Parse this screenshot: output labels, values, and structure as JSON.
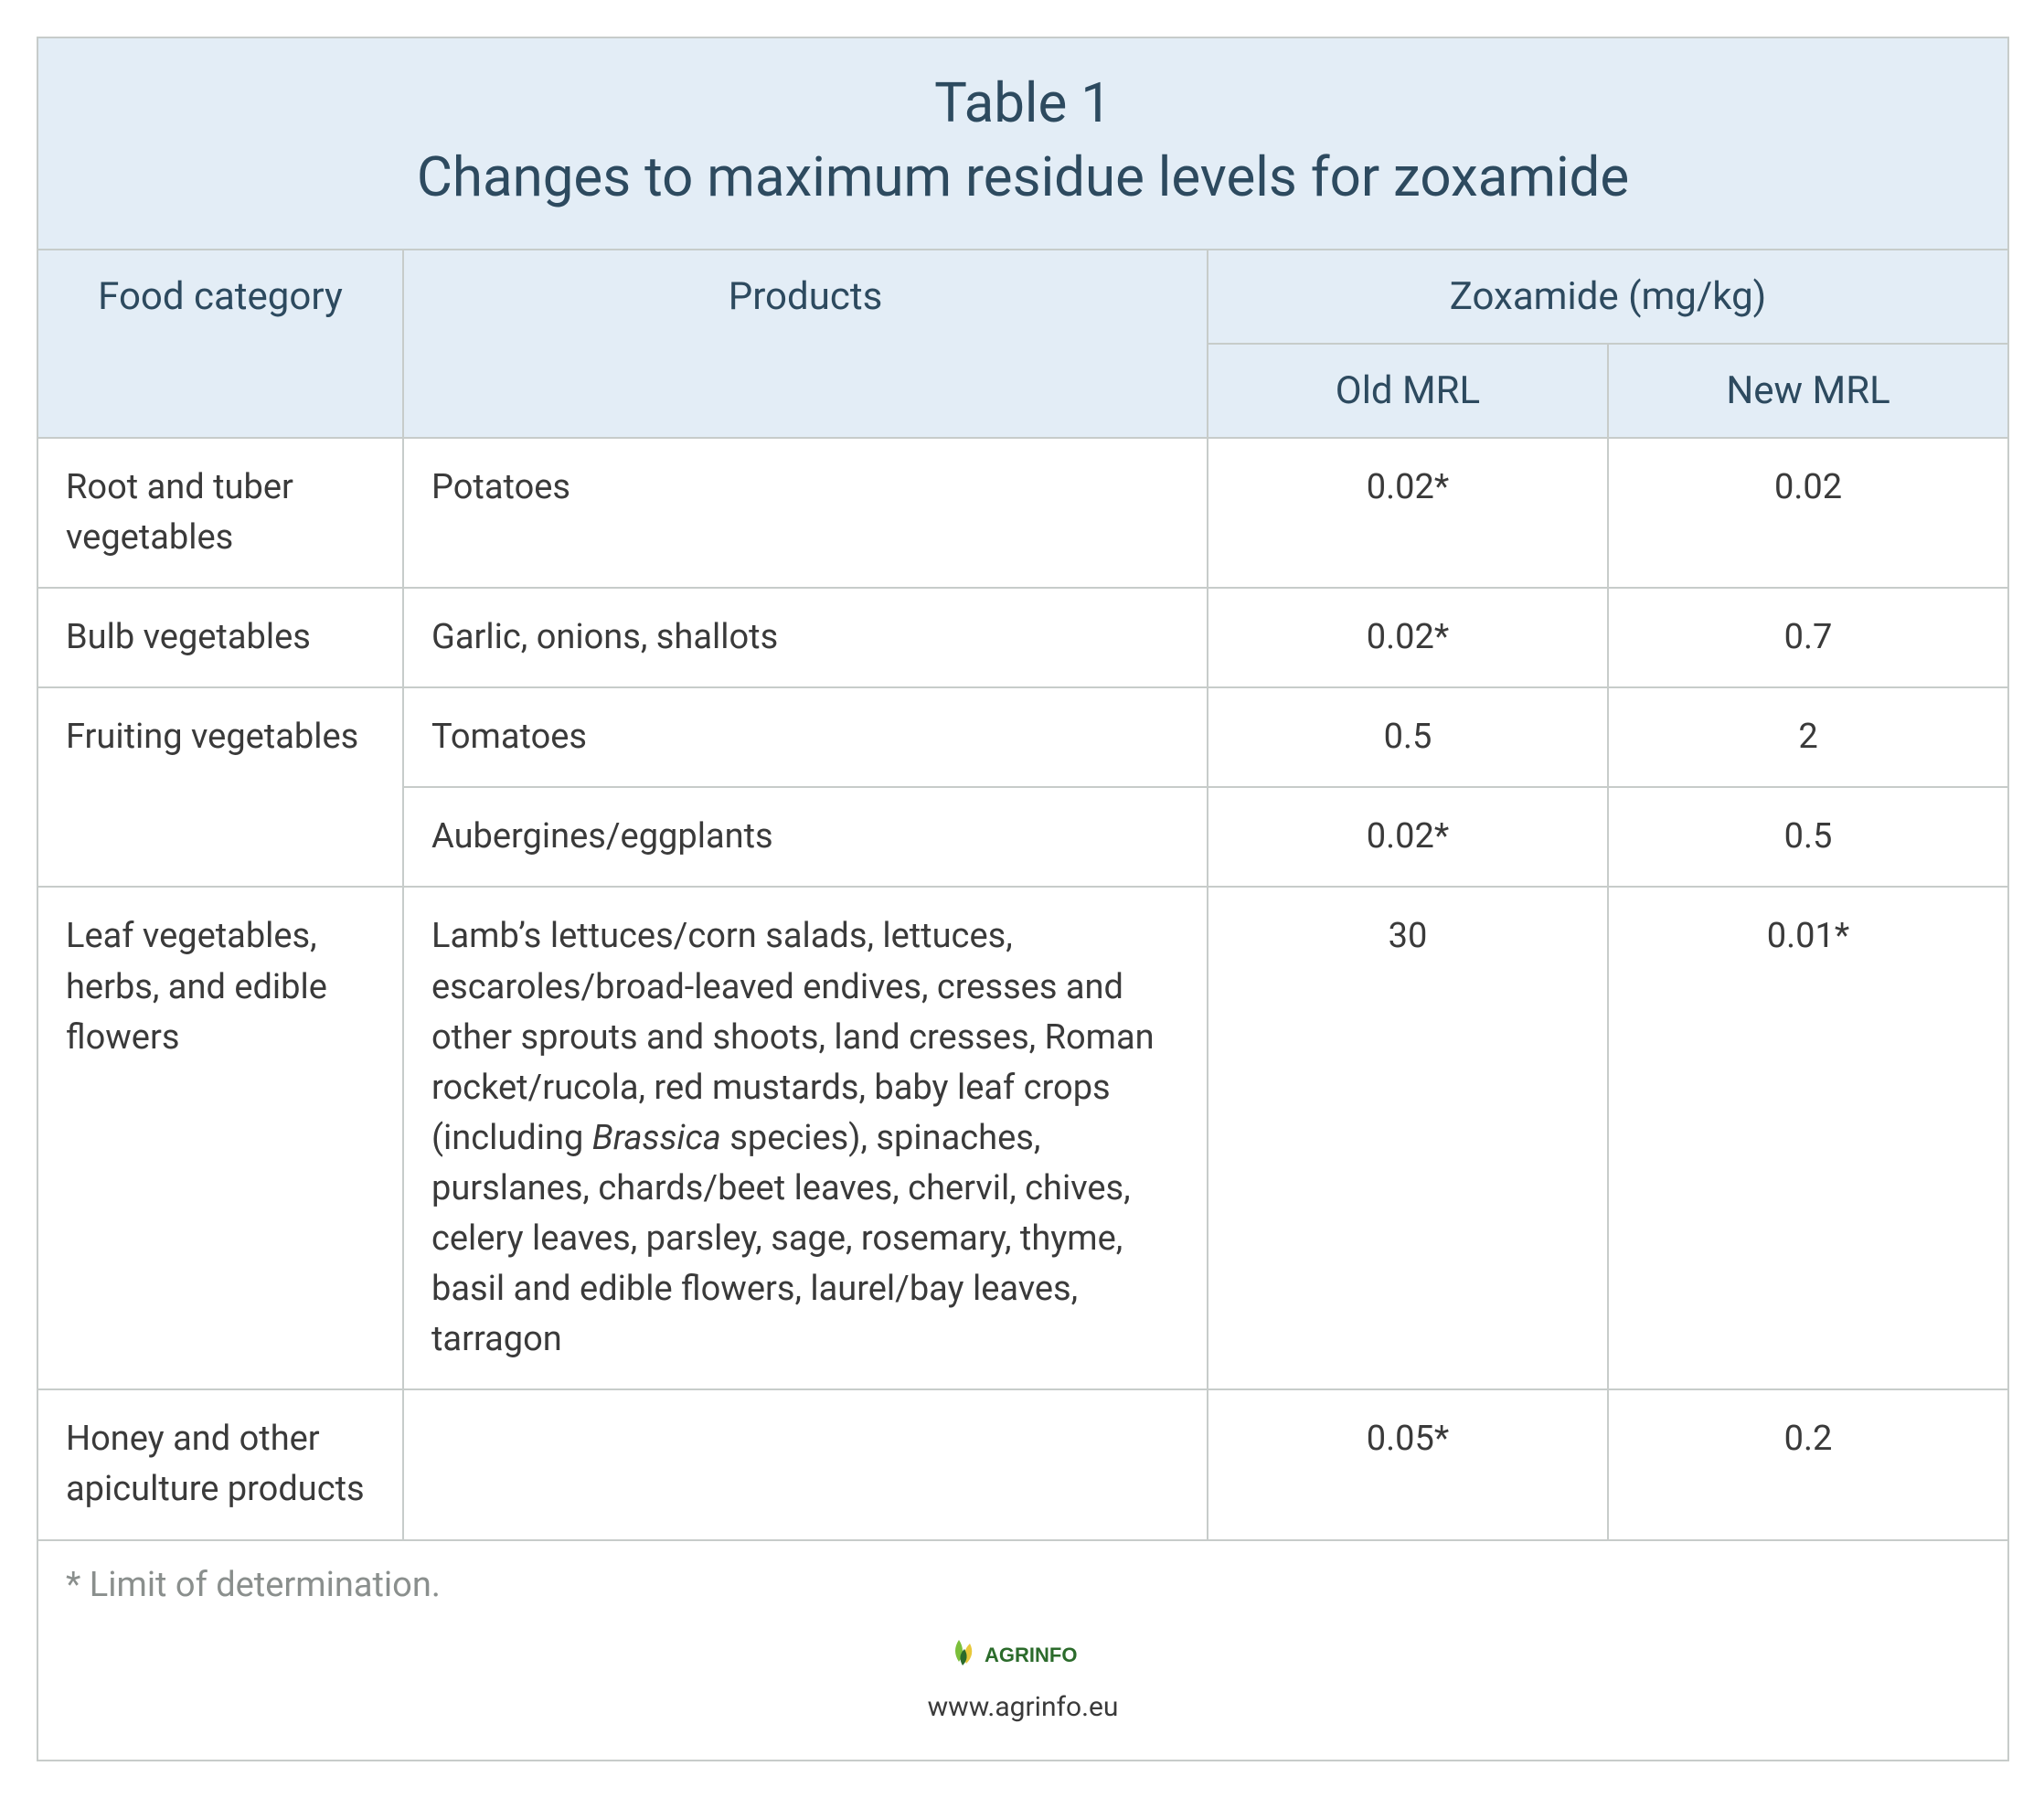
{
  "title": {
    "line1": "Table 1",
    "line2": "Changes to maximum residue levels for zoxamide"
  },
  "columns": {
    "food_category": "Food category",
    "products": "Products",
    "substance": "Zoxamide (mg/kg)",
    "old_mrl": "Old MRL",
    "new_mrl": "New MRL",
    "widths": {
      "food_category": 400,
      "products": 880,
      "old_mrl": 438,
      "new_mrl": 438
    }
  },
  "rows": [
    {
      "category": "Root and tuber vegetables",
      "category_rowspan": 1,
      "products": "Potatoes",
      "old": "0.02*",
      "new": "0.02"
    },
    {
      "category": "Bulb vegetables",
      "category_rowspan": 1,
      "products": "Garlic, onions, shallots",
      "old": "0.02*",
      "new": "0.7"
    },
    {
      "category": "Fruiting vegetables",
      "category_rowspan": 2,
      "products": "Tomatoes",
      "old": "0.5",
      "new": "2"
    },
    {
      "products": "Aubergines/eggplants",
      "old": "0.02*",
      "new": "0.5"
    },
    {
      "category": "Leaf vegetables, herbs, and edible flowers",
      "category_rowspan": 1,
      "products_html": "Lamb’s lettuces/corn salads, lettuces, escaroles/broad-leaved endives, cresses and other sprouts and shoots, land cresses, Roman rocket/rucola, red mustards, baby leaf crops (including <em>Brassica</em> species), spinaches, purslanes, chards/beet leaves, chervil, chives, celery leaves, parsley, sage, rosemary, thyme, basil and edible flowers, laurel/bay leaves, tarragon",
      "old": "30",
      "new": "0.01*"
    },
    {
      "category": "Honey and other apiculture products",
      "category_rowspan": 1,
      "products": "",
      "old": "0.05*",
      "new": "0.2"
    }
  ],
  "footnote": "* Limit of determination.",
  "logo": {
    "text": "AGRINFO",
    "colors": {
      "leaf_green": "#7bbf3a",
      "leaf_dark": "#2b6b2b",
      "leaf_yellow": "#e8c83a",
      "text": "#2b6b2b"
    }
  },
  "site_url": "www.agrinfo.eu",
  "style": {
    "border_color": "#c7ccca",
    "header_bg": "#e3edf6",
    "header_text_color": "#2d4a5f",
    "body_text_color": "#3a3a3a",
    "footnote_color": "#8a8f8d",
    "title_fontsize": 60,
    "header_fontsize": 42,
    "body_fontsize": 38,
    "footnote_fontsize": 38
  }
}
